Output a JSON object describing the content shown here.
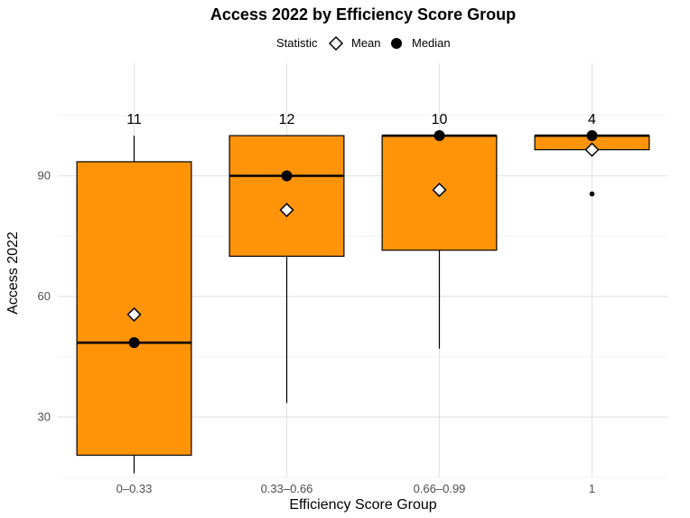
{
  "chart_data": {
    "type": "boxplot",
    "title": "Access 2022 by Efficiency Score Group",
    "xlabel": "Efficiency Score Group",
    "ylabel": "Access 2022",
    "ylim": [
      15,
      118
    ],
    "yticks": [
      30,
      60,
      90
    ],
    "grid": true,
    "legend": {
      "title": "Statistic",
      "position": "top",
      "entries": [
        {
          "label": "Mean",
          "symbol": "diamond"
        },
        {
          "label": "Median",
          "symbol": "circle"
        }
      ]
    },
    "box_color": "#FF9408",
    "groups": [
      {
        "category": "0–0.33",
        "count": "11",
        "whisker_low": 16,
        "q1": 20.5,
        "median": 48.5,
        "q3": 93.5,
        "whisker_high": 100,
        "mean": 55.5,
        "outliers": []
      },
      {
        "category": "0.33–0.66",
        "count": "12",
        "whisker_low": 33.5,
        "q1": 70,
        "median": 90,
        "q3": 100,
        "whisker_high": 100,
        "mean": 81.5,
        "outliers": []
      },
      {
        "category": "0.66–0.99",
        "count": "10",
        "whisker_low": 47,
        "q1": 71.5,
        "median": 100,
        "q3": 100,
        "whisker_high": 100,
        "mean": 86.5,
        "outliers": []
      },
      {
        "category": "1",
        "count": "4",
        "whisker_low": 96.5,
        "q1": 96.5,
        "median": 100,
        "q3": 100,
        "whisker_high": 100,
        "mean": 96.5,
        "outliers": [
          85.5
        ]
      }
    ]
  }
}
